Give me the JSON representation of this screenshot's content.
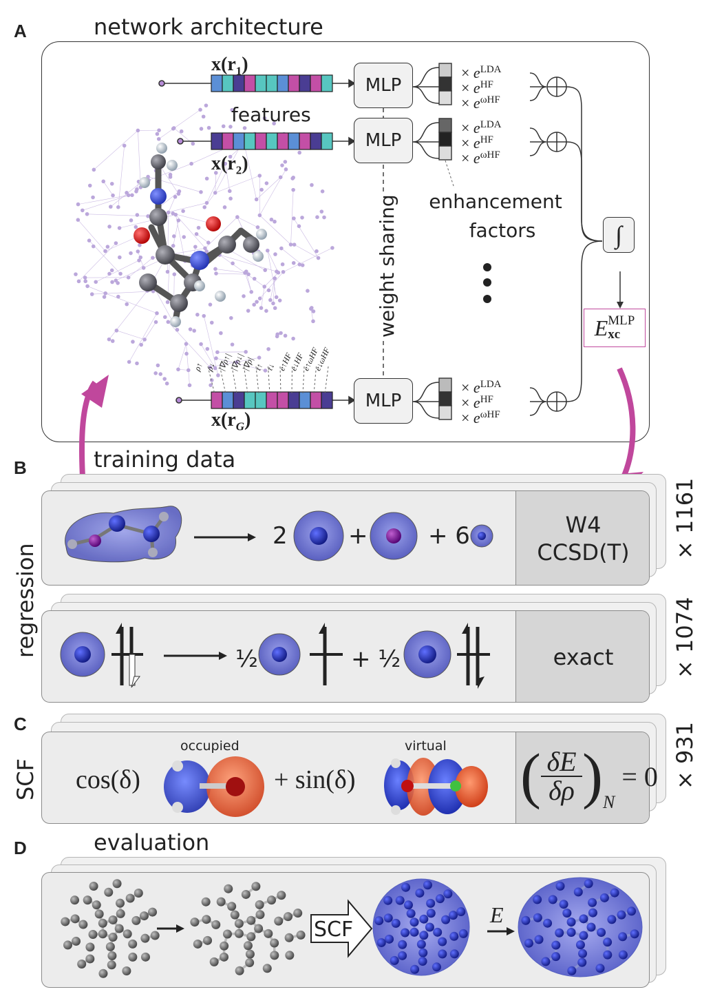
{
  "panelA": {
    "letter": "A",
    "title": "network architecture",
    "x1": "x(r",
    "x1sub": "1",
    "x2": "x(r",
    "x2sub": "2",
    "xG": "x(r",
    "xGsub": "G",
    "close": ")",
    "features": "features",
    "mlp": "MLP",
    "weight_sharing": "weight sharing",
    "enh_line1": "enhancement",
    "enh_line2": "factors",
    "times": "×",
    "eLDA": "LDA",
    "eHF": "HF",
    "ewHF": "ωHF",
    "e": "e",
    "integral": "∫",
    "Exc": "E",
    "Exc_sub": "xc",
    "Exc_sup": "MLP",
    "feature_labels": [
      "ρ↑",
      "ρ↓",
      "|∇ρ↑|",
      "|∇ρ↓|",
      "|∇ρ|",
      "τ↑",
      "τ↓",
      "e↑HF",
      "e↓HF",
      "e↑ωHF",
      "e↓ωHF"
    ],
    "feature_colors": [
      "#5b8fd6",
      "#57c6c0",
      "#4a3d93",
      "#c34fa6",
      "#57c6c0",
      "#5b8fd6",
      "#c34fa6",
      "#4a3d93",
      "#c34fa6",
      "#57c6c0",
      "#4a3d93"
    ]
  },
  "panelB": {
    "letter": "B",
    "title": "training data",
    "side": "regression",
    "row1": {
      "coef1": "2",
      "plus1": "+",
      "plus2": "+ 6",
      "ref1": "W4",
      "ref2": "CCSD(T)",
      "count": "× 1161"
    },
    "row2": {
      "half1": "½",
      "plus": "+ ½",
      "ref": "exact",
      "count": "× 1074"
    }
  },
  "panelC": {
    "letter": "C",
    "side": "SCF",
    "occupied": "occupied",
    "virtual": "virtual",
    "cos": "cos(δ)",
    "sin": "+ sin(δ)",
    "dE": "δE",
    "drho": "δρ",
    "N": "N",
    "eq0": "= 0",
    "count": "× 931"
  },
  "panelD": {
    "letter": "D",
    "title": "evaluation",
    "scf": "SCF",
    "E": "E"
  },
  "colors": {
    "magenta": "#c0479c",
    "atom_blue": "#2832a8",
    "density": "#7d82d6",
    "orbital_red": "#e0502a"
  }
}
